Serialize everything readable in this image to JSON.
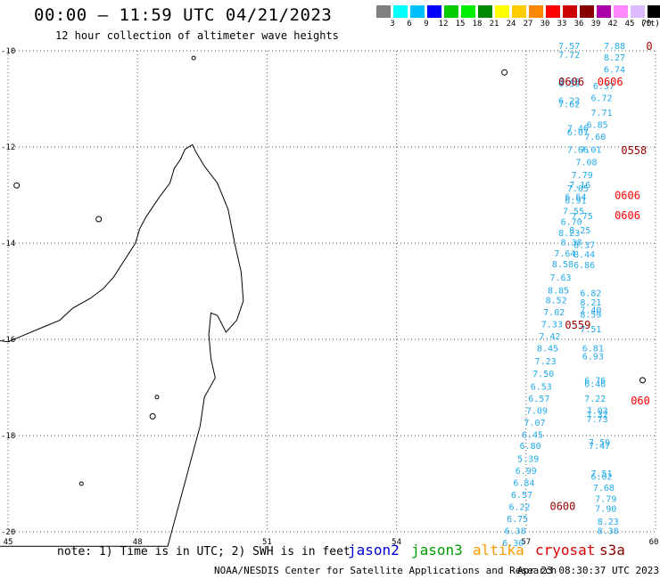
{
  "title": "00:00 – 11:59 UTC 04/21/2023",
  "subtitle": "12 hour collection of altimeter wave heights",
  "legend": {
    "unit": "(ft)",
    "bins": [
      {
        "label": "3",
        "color": "#7f7f7f"
      },
      {
        "label": "6",
        "color": "#00ffff"
      },
      {
        "label": "9",
        "color": "#00bfff"
      },
      {
        "label": "12",
        "color": "#0000ff"
      },
      {
        "label": "15",
        "color": "#00cc00"
      },
      {
        "label": "18",
        "color": "#00ee00"
      },
      {
        "label": "21",
        "color": "#008800"
      },
      {
        "label": "24",
        "color": "#ffff00"
      },
      {
        "label": "27",
        "color": "#ffcc00"
      },
      {
        "label": "30",
        "color": "#ff8800"
      },
      {
        "label": "33",
        "color": "#ff0000"
      },
      {
        "label": "36",
        "color": "#cc0000"
      },
      {
        "label": "39",
        "color": "#880000"
      },
      {
        "label": "42",
        "color": "#aa00aa"
      },
      {
        "label": "45",
        "color": "#ff88ff"
      },
      {
        "label": "70",
        "color": "#ddbbff"
      },
      {
        "label": "",
        "color": "#000000"
      }
    ]
  },
  "axes": {
    "lon_labels": [
      "45",
      "48",
      "51",
      "54",
      "57",
      "60"
    ],
    "lat_labels": [
      "-10",
      "-12",
      "-14",
      "-16",
      "-18",
      "-20"
    ]
  },
  "note": "note: 1) Time is in UTC; 2) SWH is in feet",
  "satellites": [
    {
      "name": "jason2",
      "color": "#0000dd"
    },
    {
      "name": "jason3",
      "color": "#009900"
    },
    {
      "name": "altika",
      "color": "#ff9900"
    },
    {
      "name": "cryosat",
      "color": "#dd0000"
    },
    {
      "name": "s3a",
      "color": "#880000"
    }
  ],
  "footer": "NOAA/NESDIS Center for Satellite Applications and Research",
  "timestamp": "Apr 23 08:30:37 UTC 2023",
  "wave_heights": [
    {
      "v": "7.57",
      "lon": 58.0,
      "lat": -9.96
    },
    {
      "v": "7.72",
      "lon": 58.0,
      "lat": -10.15
    },
    {
      "v": "7.88",
      "lon": 59.05,
      "lat": -9.96
    },
    {
      "v": "8.27",
      "lon": 59.05,
      "lat": -10.2
    },
    {
      "v": "6.74",
      "lon": 59.05,
      "lat": -10.45
    },
    {
      "v": "8.48",
      "lon": 58.0,
      "lat": -10.7
    },
    {
      "v": "6.59",
      "lon": 58.0,
      "lat": -10.75
    },
    {
      "v": "6.37",
      "lon": 58.8,
      "lat": -10.8
    },
    {
      "v": "6.72",
      "lon": 58.75,
      "lat": -11.05
    },
    {
      "v": "6.22",
      "lon": 58.0,
      "lat": -11.1
    },
    {
      "v": "7.62",
      "lon": 58.0,
      "lat": -11.18
    },
    {
      "v": "7.71",
      "lon": 58.75,
      "lat": -11.35
    },
    {
      "v": "6.85",
      "lon": 58.65,
      "lat": -11.6
    },
    {
      "v": "7.46",
      "lon": 58.2,
      "lat": -11.68
    },
    {
      "v": "6.07",
      "lon": 58.2,
      "lat": -11.76
    },
    {
      "v": "7.60",
      "lon": 58.6,
      "lat": -11.85
    },
    {
      "v": "7.66",
      "lon": 58.2,
      "lat": -12.12
    },
    {
      "v": "7.01",
      "lon": 58.5,
      "lat": -12.12
    },
    {
      "v": "7.08",
      "lon": 58.4,
      "lat": -12.38
    },
    {
      "v": "7.79",
      "lon": 58.3,
      "lat": -12.65
    },
    {
      "v": "7.16",
      "lon": 58.25,
      "lat": -12.85
    },
    {
      "v": "7.05",
      "lon": 58.2,
      "lat": -12.93
    },
    {
      "v": "6.64",
      "lon": 58.15,
      "lat": -13.1
    },
    {
      "v": "6.91",
      "lon": 58.15,
      "lat": -13.18
    },
    {
      "v": "7.55",
      "lon": 58.1,
      "lat": -13.4
    },
    {
      "v": "7.75",
      "lon": 58.3,
      "lat": -13.5
    },
    {
      "v": "6.70",
      "lon": 58.05,
      "lat": -13.62
    },
    {
      "v": "8.25",
      "lon": 58.25,
      "lat": -13.8
    },
    {
      "v": "8.23",
      "lon": 58.0,
      "lat": -13.85
    },
    {
      "v": "8.38",
      "lon": 58.05,
      "lat": -14.05
    },
    {
      "v": "8.37",
      "lon": 58.35,
      "lat": -14.1
    },
    {
      "v": "7.64",
      "lon": 57.9,
      "lat": -14.28
    },
    {
      "v": "8.44",
      "lon": 58.35,
      "lat": -14.3
    },
    {
      "v": "8.58",
      "lon": 57.85,
      "lat": -14.5
    },
    {
      "v": "6.86",
      "lon": 58.35,
      "lat": -14.52
    },
    {
      "v": "7.63",
      "lon": 57.8,
      "lat": -14.78
    },
    {
      "v": "8.85",
      "lon": 57.75,
      "lat": -15.05
    },
    {
      "v": "6.82",
      "lon": 58.5,
      "lat": -15.1
    },
    {
      "v": "8.52",
      "lon": 57.7,
      "lat": -15.25
    },
    {
      "v": "8.21",
      "lon": 58.5,
      "lat": -15.3
    },
    {
      "v": "7.02",
      "lon": 57.65,
      "lat": -15.5
    },
    {
      "v": "7.40",
      "lon": 58.5,
      "lat": -15.45
    },
    {
      "v": "8.59",
      "lon": 58.5,
      "lat": -15.55
    },
    {
      "v": "7.33",
      "lon": 57.6,
      "lat": -15.75
    },
    {
      "v": "7.51",
      "lon": 58.5,
      "lat": -15.85
    },
    {
      "v": "7.42",
      "lon": 57.55,
      "lat": -16.0
    },
    {
      "v": "8.45",
      "lon": 57.5,
      "lat": -16.25
    },
    {
      "v": "6.81",
      "lon": 58.55,
      "lat": -16.25
    },
    {
      "v": "6.93",
      "lon": 58.55,
      "lat": -16.42
    },
    {
      "v": "7.23",
      "lon": 57.45,
      "lat": -16.52
    },
    {
      "v": "7.50",
      "lon": 57.4,
      "lat": -16.78
    },
    {
      "v": "6.76",
      "lon": 58.6,
      "lat": -16.92
    },
    {
      "v": "6.46",
      "lon": 58.6,
      "lat": -16.99
    },
    {
      "v": "6.53",
      "lon": 57.35,
      "lat": -17.05
    },
    {
      "v": "6.57",
      "lon": 57.3,
      "lat": -17.3
    },
    {
      "v": "7.22",
      "lon": 58.6,
      "lat": -17.3
    },
    {
      "v": "7.09",
      "lon": 57.25,
      "lat": -17.55
    },
    {
      "v": "7.03",
      "lon": 58.65,
      "lat": -17.55
    },
    {
      "v": "7.32",
      "lon": 58.65,
      "lat": -17.63
    },
    {
      "v": "7.07",
      "lon": 57.2,
      "lat": -17.8
    },
    {
      "v": "7.73",
      "lon": 58.65,
      "lat": -17.72
    },
    {
      "v": "6.45",
      "lon": 57.15,
      "lat": -18.05
    },
    {
      "v": "6.80",
      "lon": 57.1,
      "lat": -18.28
    },
    {
      "v": "7.59",
      "lon": 58.7,
      "lat": -18.2
    },
    {
      "v": "7.47",
      "lon": 58.7,
      "lat": -18.28
    },
    {
      "v": "5.39",
      "lon": 57.05,
      "lat": -18.55
    },
    {
      "v": "6.99",
      "lon": 57.0,
      "lat": -18.8
    },
    {
      "v": "7.51",
      "lon": 58.75,
      "lat": -18.85
    },
    {
      "v": "6.02",
      "lon": 58.75,
      "lat": -18.92
    },
    {
      "v": "6.84",
      "lon": 56.95,
      "lat": -19.05
    },
    {
      "v": "7.68",
      "lon": 58.8,
      "lat": -19.15
    },
    {
      "v": "6.57",
      "lon": 56.9,
      "lat": -19.3
    },
    {
      "v": "7.79",
      "lon": 58.85,
      "lat": -19.38
    },
    {
      "v": "6.22",
      "lon": 56.85,
      "lat": -19.55
    },
    {
      "v": "7.90",
      "lon": 58.85,
      "lat": -19.58
    },
    {
      "v": "6.75",
      "lon": 56.8,
      "lat": -19.8
    },
    {
      "v": "8.23",
      "lon": 58.9,
      "lat": -19.85
    },
    {
      "v": "6.38",
      "lon": 56.75,
      "lat": -20.05
    },
    {
      "v": "8.38",
      "lon": 58.9,
      "lat": -20.05
    },
    {
      "v": "6.30",
      "lon": 56.7,
      "lat": -20.3
    }
  ],
  "time_stamps": [
    {
      "v": "0606",
      "lon": 58.05,
      "lat": -10.72,
      "c": "#990000"
    },
    {
      "v": "0606",
      "lon": 58.95,
      "lat": -10.72,
      "c": "#ff0000"
    },
    {
      "v": "0558",
      "lon": 59.5,
      "lat": -12.15,
      "c": "#990000"
    },
    {
      "v": "0606",
      "lon": 59.35,
      "lat": -13.08,
      "c": "#ff0000"
    },
    {
      "v": "0606",
      "lon": 59.35,
      "lat": -13.5,
      "c": "#ff0000"
    },
    {
      "v": "0559",
      "lon": 58.2,
      "lat": -15.78,
      "c": "#990000"
    },
    {
      "v": "0600",
      "lon": 57.85,
      "lat": -19.55,
      "c": "#990000"
    },
    {
      "v": "060",
      "lon": 59.65,
      "lat": -17.35,
      "c": "#ff0000"
    },
    {
      "v": "0",
      "lon": 59.92,
      "lat": -9.98,
      "c": "#990000"
    }
  ]
}
